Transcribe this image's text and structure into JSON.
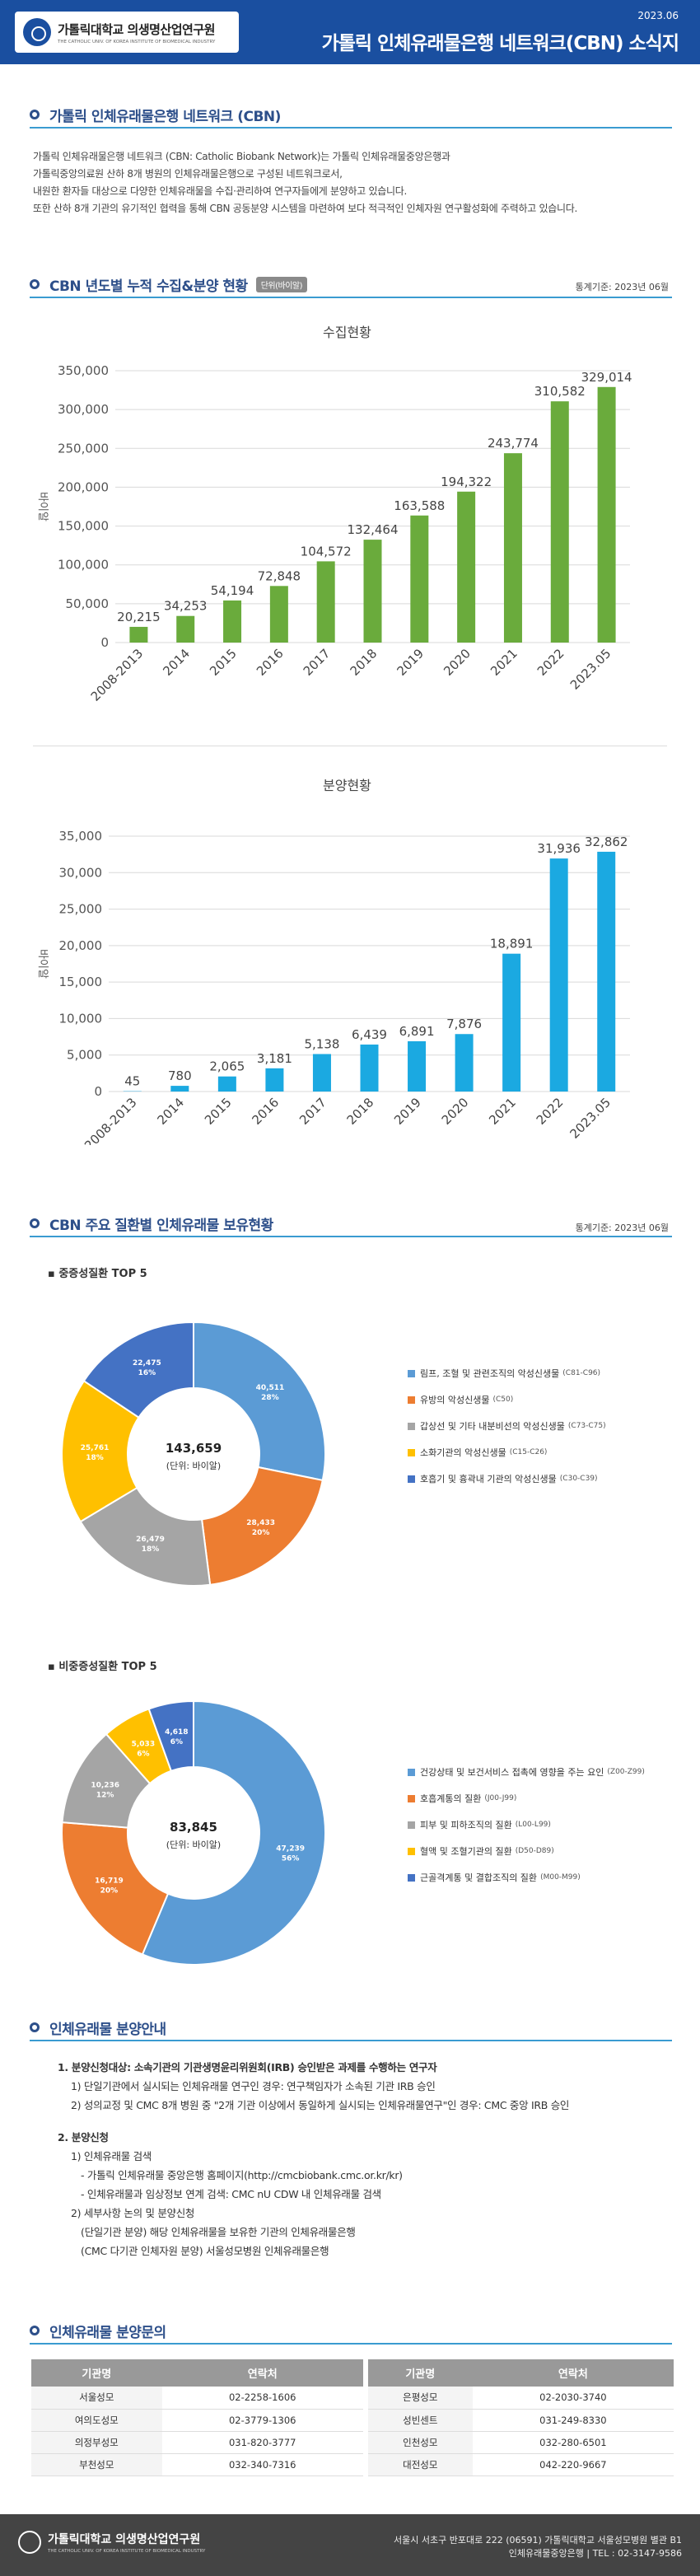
{
  "header": {
    "logo_main": "가톨릭대학교 의생명산업연구원",
    "logo_sub": "THE CATHOLIC UNIV. OF KOREA INSTITUTE OF BIOMEDICAL INDUSTRY",
    "date": "2023.06",
    "title": "가톨릭 인체유래물은행 네트워크(CBN) 소식지"
  },
  "intro": {
    "title": "가톨릭 인체유래물은행 네트워크 (CBN)",
    "lines": [
      "가톨릭 인체유래물은행 네트워크 (CBN: Catholic Biobank Network)는 가톨릭 인체유래물중앙은행과",
      "가톨릭중앙의료원 산하 8개 병원의 인체유래물은행으로 구성된 네트워크로서,",
      "내원한 환자들 대상으로 다양한 인체유래물을 수집·관리하여 연구자들에게 분양하고 있습니다.",
      "또한 산하 8개 기관의 유기적인 협력을 통해 CBN 공동분양 시스템을 마련하여 보다 적극적인 인체자원 연구활성화에 주력하고 있습니다."
    ]
  },
  "stats": {
    "title": "CBN 년도별 누적 수집&분양 현황",
    "badge": "단위(바이알)",
    "std_date": "통계기준: 2023년 06월"
  },
  "chart_data": [
    {
      "type": "bar",
      "title": "수집현황",
      "ylabel": "바이알",
      "categories": [
        "2008-2013",
        "2014",
        "2015",
        "2016",
        "2017",
        "2018",
        "2019",
        "2020",
        "2021",
        "2022",
        "2023.05"
      ],
      "values": [
        20215,
        34253,
        54194,
        72848,
        104572,
        132464,
        163588,
        194322,
        243774,
        310582,
        329014
      ],
      "value_labels": [
        "20,215",
        "34,253",
        "54,194",
        "72,848",
        "104,572",
        "132,464",
        "163,588",
        "194,322",
        "243,774",
        "310,582",
        "329,014"
      ],
      "ylim": [
        0,
        350000
      ],
      "yticks": [
        "0",
        "50,000",
        "100,000",
        "150,000",
        "200,000",
        "250,000",
        "300,000",
        "350,000"
      ],
      "color": "#6aab3c",
      "grid": true
    },
    {
      "type": "bar",
      "title": "분양현황",
      "ylabel": "바이알",
      "categories": [
        "2008-2013",
        "2014",
        "2015",
        "2016",
        "2017",
        "2018",
        "2019",
        "2020",
        "2021",
        "2022",
        "2023.05"
      ],
      "values": [
        45,
        780,
        2065,
        3181,
        5138,
        6439,
        6891,
        7876,
        18891,
        31936,
        32862
      ],
      "value_labels": [
        "45",
        "780",
        "2,065",
        "3,181",
        "5,138",
        "6,439",
        "6,891",
        "7,876",
        "18,891",
        "31,936",
        "32,862"
      ],
      "ylim": [
        0,
        35000
      ],
      "yticks": [
        "0",
        "5,000",
        "10,000",
        "15,000",
        "20,000",
        "25,000",
        "30,000",
        "35,000"
      ],
      "color": "#1ba9e1",
      "grid": true
    },
    {
      "type": "pie",
      "title": "중증성질환 TOP 5",
      "center_value": "143,659",
      "center_unit": "(단위: 바이알)",
      "slices": [
        {
          "label": "림프, 조혈 및 관련조직의 악성신생물",
          "code": "(C81-C96)",
          "value": 40511,
          "value_label": "40,511",
          "pct": "28%",
          "color": "#5b9bd5"
        },
        {
          "label": "유방의 악성신생물",
          "code": "(C50)",
          "value": 28433,
          "value_label": "28,433",
          "pct": "20%",
          "color": "#ed7d31"
        },
        {
          "label": "갑상선 및 기타 내분비선의 악성신생물",
          "code": "(C73-C75)",
          "value": 26479,
          "value_label": "26,479",
          "pct": "18%",
          "color": "#a5a5a5"
        },
        {
          "label": "소화기관의 악성신생물",
          "code": "(C15-C26)",
          "value": 25761,
          "value_label": "25,761",
          "pct": "18%",
          "color": "#ffc000"
        },
        {
          "label": "호흡기 및 흉곽내 기관의 악성신생물",
          "code": "(C30-C39)",
          "value": 22475,
          "value_label": "22,475",
          "pct": "16%",
          "color": "#4472c4"
        }
      ]
    },
    {
      "type": "pie",
      "title": "비중증성질환 TOP 5",
      "center_value": "83,845",
      "center_unit": "(단위: 바이알)",
      "slices": [
        {
          "label": "건강상태 및 보건서비스 접촉에 영향을 주는 요인",
          "code": "(Z00-Z99)",
          "value": 47239,
          "value_label": "47,239",
          "pct": "56%",
          "color": "#5b9bd5"
        },
        {
          "label": "호흡계통의 질환",
          "code": "(J00-J99)",
          "value": 16719,
          "value_label": "16,719",
          "pct": "20%",
          "color": "#ed7d31"
        },
        {
          "label": "피부 및 피하조직의 질환",
          "code": "(L00-L99)",
          "value": 10236,
          "value_label": "10,236",
          "pct": "12%",
          "color": "#a5a5a5"
        },
        {
          "label": "혈액 및 조혈기관의 질환",
          "code": "(D50-D89)",
          "value": 5033,
          "value_label": "5,033",
          "pct": "6%",
          "color": "#ffc000"
        },
        {
          "label": "근골격계통 및 결합조직의 질환",
          "code": "(M00-M99)",
          "value": 4618,
          "value_label": "4,618",
          "pct": "6%",
          "color": "#4472c4"
        }
      ]
    }
  ],
  "disease": {
    "title": "CBN 주요 질환별 인체유래물 보유현황",
    "std_date": "통계기준: 2023년 06월",
    "severe_title": "중증성질환 TOP 5",
    "nonsevere_title": "비중증성질환 TOP 5"
  },
  "guide": {
    "title": "인체유래물 분양안내",
    "item1": "1. 분양신청대상: 소속기관의 기관생명윤리위원회(IRB) 승인받은 과제를 수행하는 연구자",
    "item1_1": "1) 단일기관에서 실시되는 인체유래물 연구인 경우: 연구책임자가 소속된 기관 IRB 승인",
    "item1_2": "2) 성의교정 및 CMC 8개 병원 중 \"2개 기관 이상에서 동일하게 실시되는 인체유래물연구\"인 경우: CMC 중앙 IRB 승인",
    "item2": "2. 분양신청",
    "item2_1": "1) 인체유래물 검색",
    "item2_1a": "- 가톨릭 인체유래물 중앙은행 홈페이지(http://cmcbiobank.cmc.or.kr/kr)",
    "item2_1b": "- 인체유래물과 임상정보 연계 검색: CMC nU CDW 내 인체유래물 검색",
    "item2_2": "2) 세부사항 논의 및 분양신청",
    "item2_2a": "(단일기관 분양) 해당 인체유래물을 보유한 기관의 인체유래물은행",
    "item2_2b": "(CMC 다기관 인체자원 분양) 서울성모병원 인체유래물은행"
  },
  "contact": {
    "title": "인체유래물 분양문의",
    "col_org": "기관명",
    "col_tel": "연락처",
    "rows": [
      {
        "org1": "서울성모",
        "tel1": "02-2258-1606",
        "org2": "은평성모",
        "tel2": "02-2030-3740"
      },
      {
        "org1": "여의도성모",
        "tel1": "02-3779-1306",
        "org2": "성빈센트",
        "tel2": "031-249-8330"
      },
      {
        "org1": "의정부성모",
        "tel1": "031-820-3777",
        "org2": "인천성모",
        "tel2": "032-280-6501"
      },
      {
        "org1": "부천성모",
        "tel1": "032-340-7316",
        "org2": "대전성모",
        "tel2": "042-220-9667"
      }
    ]
  },
  "footer": {
    "logo_main": "가톨릭대학교 의생명산업연구원",
    "logo_sub": "THE CATHOLIC UNIV. OF KOREA INSTITUTE OF BIOMEDICAL INDUSTRY",
    "addr1": "서울시 서초구 반포대로 222 (06591) 가톨릭대학교 서울성모병원 별관 B1",
    "addr2": "인체유래물중앙은행 | TEL : 02-3147-9586"
  }
}
